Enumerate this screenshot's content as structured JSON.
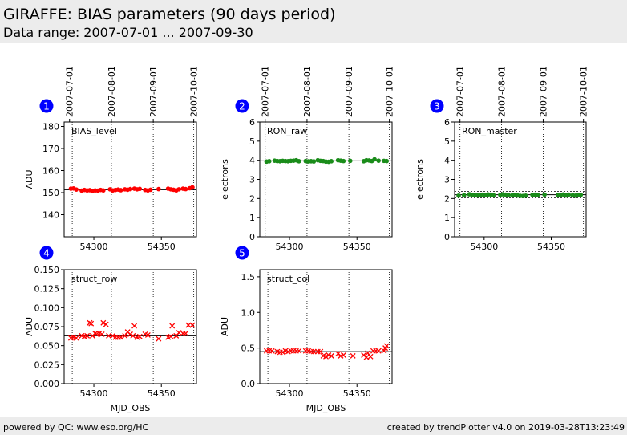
{
  "header": {
    "title": "GIRAFFE: BIAS parameters (90 days period)",
    "subtitle": "Data range: 2007-07-01 ... 2007-09-30"
  },
  "footer": {
    "left": "powered by QC: www.eso.org/HC",
    "right": "created by trendPlotter v4.0 on 2019-03-28T13:23:49"
  },
  "colors": {
    "red": "#ff0000",
    "green": "#1a8c1a",
    "badge": "#0000ff"
  },
  "chart_data": [
    {
      "type": "scatter",
      "badge": "1",
      "panel_label": "BIAS_level",
      "ylabel": "ADU",
      "xlabel": "",
      "xlim": [
        54278,
        54376
      ],
      "ylim": [
        130,
        182
      ],
      "yticks": [
        140,
        150,
        160,
        170,
        180
      ],
      "xticks": [
        54300,
        54350
      ],
      "top_dates": [
        {
          "x": 54282,
          "label": "2007-07-01"
        },
        {
          "x": 54313,
          "label": "2007-08-01"
        },
        {
          "x": 54344,
          "label": "2007-09-01"
        },
        {
          "x": 54374,
          "label": "2007-10-01"
        }
      ],
      "marker": "dot",
      "color": "red",
      "ref_lines": [
        151.3
      ],
      "vlines": [
        54284,
        54313,
        54344,
        54374
      ],
      "points": [
        [
          54283,
          151.8
        ],
        [
          54285,
          151.9
        ],
        [
          54287,
          151.4
        ],
        [
          54291,
          150.9
        ],
        [
          54293,
          151.2
        ],
        [
          54295,
          151.0
        ],
        [
          54297,
          151.1
        ],
        [
          54299,
          150.8
        ],
        [
          54301,
          151.0
        ],
        [
          54303,
          150.9
        ],
        [
          54305,
          151.2
        ],
        [
          54307,
          151.0
        ],
        [
          54312,
          151.5
        ],
        [
          54314,
          151.0
        ],
        [
          54316,
          151.2
        ],
        [
          54318,
          151.4
        ],
        [
          54320,
          151.1
        ],
        [
          54323,
          151.5
        ],
        [
          54325,
          151.3
        ],
        [
          54327,
          151.6
        ],
        [
          54330,
          151.8
        ],
        [
          54332,
          151.5
        ],
        [
          54334,
          151.7
        ],
        [
          54338,
          151.2
        ],
        [
          54340,
          151.0
        ],
        [
          54342,
          151.3
        ],
        [
          54348,
          151.6
        ],
        [
          54355,
          151.8
        ],
        [
          54357,
          151.5
        ],
        [
          54359,
          151.3
        ],
        [
          54361,
          151.0
        ],
        [
          54363,
          151.5
        ],
        [
          54366,
          151.8
        ],
        [
          54368,
          151.6
        ],
        [
          54371,
          152.0
        ],
        [
          54373,
          152.4
        ]
      ]
    },
    {
      "type": "scatter",
      "badge": "2",
      "panel_label": "RON_raw",
      "ylabel": "electrons",
      "xlabel": "",
      "xlim": [
        54278,
        54376
      ],
      "ylim": [
        0,
        6
      ],
      "yticks": [
        0,
        1,
        2,
        3,
        4,
        5,
        6
      ],
      "xticks": [
        54300,
        54350
      ],
      "top_dates": [
        {
          "x": 54282,
          "label": "2007-07-01"
        },
        {
          "x": 54313,
          "label": "2007-08-01"
        },
        {
          "x": 54344,
          "label": "2007-09-01"
        },
        {
          "x": 54374,
          "label": "2007-10-01"
        }
      ],
      "marker": "dot",
      "color": "green",
      "ref_lines": [
        3.97
      ],
      "vlines": [
        54282,
        54313,
        54344,
        54374
      ],
      "points": [
        [
          54283,
          3.93
        ],
        [
          54285,
          3.95
        ],
        [
          54289,
          3.98
        ],
        [
          54291,
          3.96
        ],
        [
          54293,
          3.95
        ],
        [
          54295,
          3.97
        ],
        [
          54297,
          3.96
        ],
        [
          54299,
          3.95
        ],
        [
          54301,
          3.97
        ],
        [
          54303,
          3.98
        ],
        [
          54305,
          4.0
        ],
        [
          54307,
          3.95
        ],
        [
          54312,
          3.96
        ],
        [
          54314,
          3.94
        ],
        [
          54316,
          3.95
        ],
        [
          54318,
          3.94
        ],
        [
          54321,
          4.0
        ],
        [
          54323,
          3.97
        ],
        [
          54325,
          3.96
        ],
        [
          54327,
          3.93
        ],
        [
          54329,
          3.92
        ],
        [
          54331,
          3.95
        ],
        [
          54336,
          4.0
        ],
        [
          54338,
          3.98
        ],
        [
          54340,
          3.96
        ],
        [
          54345,
          3.97
        ],
        [
          54355,
          3.95
        ],
        [
          54357,
          4.0
        ],
        [
          54359,
          3.99
        ],
        [
          54361,
          3.96
        ],
        [
          54363,
          4.05
        ],
        [
          54366,
          3.98
        ],
        [
          54370,
          3.97
        ],
        [
          54372,
          3.96
        ]
      ]
    },
    {
      "type": "scatter",
      "badge": "3",
      "panel_label": "RON_master",
      "ylabel": "electrons",
      "xlabel": "",
      "xlim": [
        54278,
        54376
      ],
      "ylim": [
        0,
        6
      ],
      "yticks": [
        0,
        1,
        2,
        3,
        4,
        5,
        6
      ],
      "xticks": [
        54300,
        54350
      ],
      "top_dates": [
        {
          "x": 54282,
          "label": "2007-07-01"
        },
        {
          "x": 54313,
          "label": "2007-08-01"
        },
        {
          "x": 54344,
          "label": "2007-09-01"
        },
        {
          "x": 54374,
          "label": "2007-10-01"
        }
      ],
      "marker": "dot",
      "color": "green",
      "ref_lines": [
        2.2
      ],
      "dashed_lines": [
        2.03,
        2.37
      ],
      "vlines": [
        54282,
        54313,
        54344,
        54374
      ],
      "points": [
        [
          54281,
          2.15
        ],
        [
          54285,
          2.17
        ],
        [
          54289,
          2.22
        ],
        [
          54291,
          2.19
        ],
        [
          54293,
          2.17
        ],
        [
          54295,
          2.16
        ],
        [
          54297,
          2.18
        ],
        [
          54299,
          2.2
        ],
        [
          54301,
          2.19
        ],
        [
          54303,
          2.21
        ],
        [
          54305,
          2.2
        ],
        [
          54307,
          2.17
        ],
        [
          54312,
          2.19
        ],
        [
          54314,
          2.22
        ],
        [
          54316,
          2.2
        ],
        [
          54318,
          2.19
        ],
        [
          54321,
          2.17
        ],
        [
          54323,
          2.18
        ],
        [
          54325,
          2.16
        ],
        [
          54327,
          2.14
        ],
        [
          54329,
          2.13
        ],
        [
          54331,
          2.15
        ],
        [
          54336,
          2.19
        ],
        [
          54338,
          2.2
        ],
        [
          54340,
          2.18
        ],
        [
          54345,
          2.2
        ],
        [
          54355,
          2.18
        ],
        [
          54357,
          2.19
        ],
        [
          54359,
          2.21
        ],
        [
          54361,
          2.16
        ],
        [
          54363,
          2.2
        ],
        [
          54366,
          2.17
        ],
        [
          54368,
          2.15
        ],
        [
          54370,
          2.18
        ],
        [
          54372,
          2.19
        ]
      ]
    },
    {
      "type": "scatter",
      "badge": "4",
      "panel_label": "struct_row",
      "ylabel": "ADU",
      "xlabel": "MJD_OBS",
      "xlim": [
        54278,
        54376
      ],
      "ylim": [
        0,
        0.15
      ],
      "yticks": [
        0.0,
        0.025,
        0.05,
        0.075,
        0.1,
        0.125,
        0.15
      ],
      "xticks": [
        54300,
        54350
      ],
      "top_dates": [],
      "marker": "x",
      "color": "red",
      "ref_lines": [
        0.063
      ],
      "vlines": [
        54284,
        54313,
        54344,
        54374
      ],
      "points": [
        [
          54283,
          0.06
        ],
        [
          54285,
          0.061
        ],
        [
          54287,
          0.06
        ],
        [
          54291,
          0.063
        ],
        [
          54293,
          0.062
        ],
        [
          54295,
          0.063
        ],
        [
          54297,
          0.08
        ],
        [
          54298,
          0.079
        ],
        [
          54299,
          0.063
        ],
        [
          54301,
          0.066
        ],
        [
          54302,
          0.065
        ],
        [
          54304,
          0.066
        ],
        [
          54306,
          0.065
        ],
        [
          54307,
          0.08
        ],
        [
          54309,
          0.078
        ],
        [
          54311,
          0.063
        ],
        [
          54314,
          0.063
        ],
        [
          54316,
          0.061
        ],
        [
          54318,
          0.061
        ],
        [
          54320,
          0.061
        ],
        [
          54323,
          0.063
        ],
        [
          54325,
          0.068
        ],
        [
          54327,
          0.065
        ],
        [
          54329,
          0.063
        ],
        [
          54330,
          0.076
        ],
        [
          54332,
          0.061
        ],
        [
          54334,
          0.062
        ],
        [
          54338,
          0.065
        ],
        [
          54340,
          0.064
        ],
        [
          54348,
          0.059
        ],
        [
          54355,
          0.061
        ],
        [
          54357,
          0.062
        ],
        [
          54358,
          0.076
        ],
        [
          54361,
          0.063
        ],
        [
          54363,
          0.067
        ],
        [
          54366,
          0.066
        ],
        [
          54368,
          0.066
        ],
        [
          54370,
          0.077
        ],
        [
          54373,
          0.077
        ]
      ]
    },
    {
      "type": "scatter",
      "badge": "5",
      "panel_label": "struct_col",
      "ylabel": "ADU",
      "xlabel": "MJD_OBS",
      "xlim": [
        54278,
        54376
      ],
      "ylim": [
        0,
        1.6
      ],
      "yticks": [
        0.0,
        0.5,
        1.0,
        1.5
      ],
      "xticks": [
        54300,
        54350
      ],
      "top_dates": [],
      "marker": "x",
      "color": "red",
      "ref_lines": [
        0.45
      ],
      "vlines": [
        54284,
        54313,
        54344,
        54374
      ],
      "points": [
        [
          54283,
          0.46
        ],
        [
          54285,
          0.46
        ],
        [
          54287,
          0.46
        ],
        [
          54291,
          0.45
        ],
        [
          54293,
          0.44
        ],
        [
          54295,
          0.44
        ],
        [
          54297,
          0.46
        ],
        [
          54299,
          0.45
        ],
        [
          54301,
          0.46
        ],
        [
          54303,
          0.46
        ],
        [
          54305,
          0.46
        ],
        [
          54307,
          0.46
        ],
        [
          54312,
          0.46
        ],
        [
          54314,
          0.46
        ],
        [
          54316,
          0.45
        ],
        [
          54318,
          0.45
        ],
        [
          54321,
          0.45
        ],
        [
          54323,
          0.45
        ],
        [
          54325,
          0.39
        ],
        [
          54327,
          0.38
        ],
        [
          54329,
          0.4
        ],
        [
          54331,
          0.39
        ],
        [
          54336,
          0.42
        ],
        [
          54338,
          0.39
        ],
        [
          54340,
          0.4
        ],
        [
          54347,
          0.39
        ],
        [
          54355,
          0.4
        ],
        [
          54357,
          0.37
        ],
        [
          54358,
          0.43
        ],
        [
          54360,
          0.38
        ],
        [
          54362,
          0.46
        ],
        [
          54364,
          0.46
        ],
        [
          54366,
          0.46
        ],
        [
          54370,
          0.46
        ],
        [
          54371,
          0.5
        ],
        [
          54372,
          0.53
        ]
      ]
    }
  ]
}
